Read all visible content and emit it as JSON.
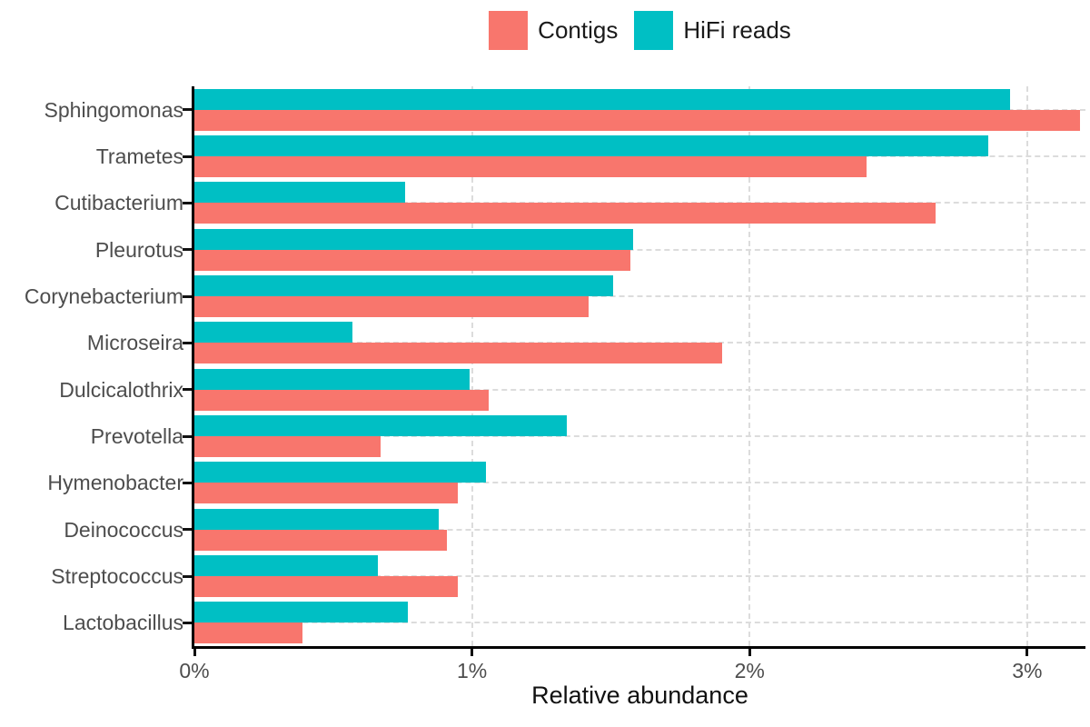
{
  "legend": {
    "items": [
      {
        "label": "Contigs",
        "color": "#F8766D",
        "icon": "legend-swatch"
      },
      {
        "label": "HiFi reads",
        "color": "#00BFC4",
        "icon": "legend-swatch"
      }
    ]
  },
  "chart_data": {
    "type": "bar",
    "orientation": "horizontal",
    "title": "",
    "xlabel": "Relative abundance",
    "ylabel": "",
    "categories": [
      "Sphingomonas",
      "Trametes",
      "Cutibacterium",
      "Pleurotus",
      "Corynebacterium",
      "Microseira",
      "Dulcicalothrix",
      "Prevotella",
      "Hymenobacter",
      "Deinococcus",
      "Streptococcus",
      "Lactobacillus"
    ],
    "series": [
      {
        "name": "Contigs",
        "color": "#F8766D",
        "values": [
          3.19,
          2.42,
          2.67,
          1.57,
          1.42,
          1.9,
          1.06,
          0.67,
          0.95,
          0.91,
          0.95,
          0.39
        ]
      },
      {
        "name": "HiFi reads",
        "color": "#00BFC4",
        "values": [
          2.94,
          2.86,
          0.76,
          1.58,
          1.51,
          0.57,
          0.99,
          1.34,
          1.05,
          0.88,
          0.66,
          0.77
        ]
      }
    ],
    "x_ticks": [
      "0%",
      "1%",
      "2%",
      "3%"
    ],
    "x_tick_values": [
      0,
      1,
      2,
      3
    ],
    "xlim": [
      0,
      3.21
    ],
    "grid": "dashed",
    "legend_position": "top",
    "axis_color": "#000000",
    "gridline_color": "#dcdcdc",
    "tick_label_color": "#4d4d4d"
  }
}
